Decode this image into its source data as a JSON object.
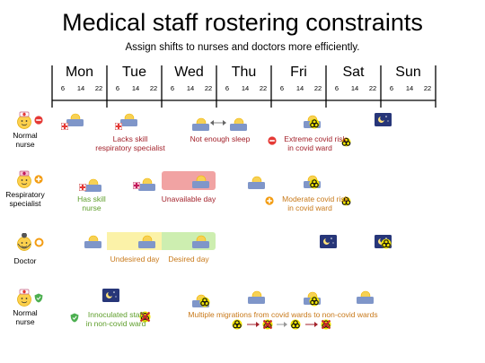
{
  "header": {
    "title": "Medical staff rostering constraints",
    "subtitle": "Assign shifts to nurses and doctors more efficiently."
  },
  "timeline": {
    "days": [
      "Mon",
      "Tue",
      "Wed",
      "Thu",
      "Fri",
      "Sat",
      "Sun"
    ],
    "hours": [
      "6",
      "14",
      "22"
    ]
  },
  "rows": [
    {
      "label_line1": "Normal",
      "label_line2": "nurse",
      "badge": "minus-icon",
      "badge_color": "#e53935"
    },
    {
      "label_line1": "Respiratory",
      "label_line2": "specialist",
      "badge": "plus-icon",
      "badge_color": "#f39c12"
    },
    {
      "label_line1": "Doctor",
      "label_line2": "",
      "badge": "ring-icon",
      "badge_color": "#f39c12"
    },
    {
      "label_line1": "Normal",
      "label_line2": "nurse",
      "badge": "shield-icon",
      "badge_color": "#4caf50"
    }
  ],
  "notes": {
    "lacks_skill_1": "Lacks skill",
    "lacks_skill_2": "respiratory specialist",
    "not_enough_sleep": "Not enough sleep",
    "extreme_risk_1": "Extreme covid risk",
    "extreme_risk_2": "in covid ward",
    "has_skill_1": "Has skill",
    "has_skill_2": "nurse",
    "unavailable_day": "Unavailable day",
    "moderate_risk_1": "Moderate covid risk",
    "moderate_risk_2": "in covid ward",
    "undesired_day": "Undesired day",
    "desired_day": "Desired day",
    "innoculated_1": "Innoculated staff",
    "innoculated_2": "in non-covid ward",
    "migrations": "Multiple migrations from covid wards to non-covid wards"
  },
  "colors": {
    "unavailable": "#f1a3a3",
    "undesired": "#fbf2a8",
    "desired": "#cdeeb0",
    "shift_blue": "#7f96c9",
    "night_navy": "#273679",
    "sun_yellow": "#f7d154",
    "biohazard": "#f2e400",
    "bad_red": "#a3222b",
    "good_green": "#5e9e2b",
    "moderate_orange": "#c8791a"
  }
}
